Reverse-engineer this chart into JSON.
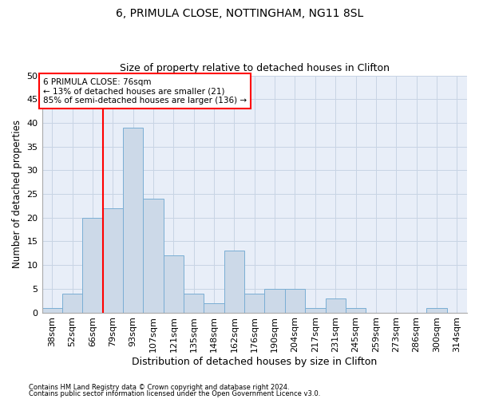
{
  "title1": "6, PRIMULA CLOSE, NOTTINGHAM, NG11 8SL",
  "title2": "Size of property relative to detached houses in Clifton",
  "xlabel": "Distribution of detached houses by size in Clifton",
  "ylabel": "Number of detached properties",
  "footer1": "Contains HM Land Registry data © Crown copyright and database right 2024.",
  "footer2": "Contains public sector information licensed under the Open Government Licence v3.0.",
  "bin_labels": [
    "38sqm",
    "52sqm",
    "66sqm",
    "79sqm",
    "93sqm",
    "107sqm",
    "121sqm",
    "135sqm",
    "148sqm",
    "162sqm",
    "176sqm",
    "190sqm",
    "204sqm",
    "217sqm",
    "231sqm",
    "245sqm",
    "259sqm",
    "273sqm",
    "286sqm",
    "300sqm",
    "314sqm"
  ],
  "bar_values": [
    1,
    4,
    20,
    22,
    39,
    24,
    12,
    4,
    2,
    13,
    4,
    5,
    5,
    1,
    3,
    1,
    0,
    0,
    0,
    1,
    0
  ],
  "bar_color": "#ccd9e8",
  "bar_edge_color": "#7aaed4",
  "vline_x": 2.5,
  "vline_color": "red",
  "ylim": [
    0,
    50
  ],
  "yticks": [
    0,
    5,
    10,
    15,
    20,
    25,
    30,
    35,
    40,
    45,
    50
  ],
  "annotation_box_text": "6 PRIMULA CLOSE: 76sqm\n← 13% of detached houses are smaller (21)\n85% of semi-detached houses are larger (136) →",
  "ann_box_color": "red",
  "ann_box_fill": "white",
  "grid_color": "#c8d4e4",
  "background_color": "#e8eef8"
}
